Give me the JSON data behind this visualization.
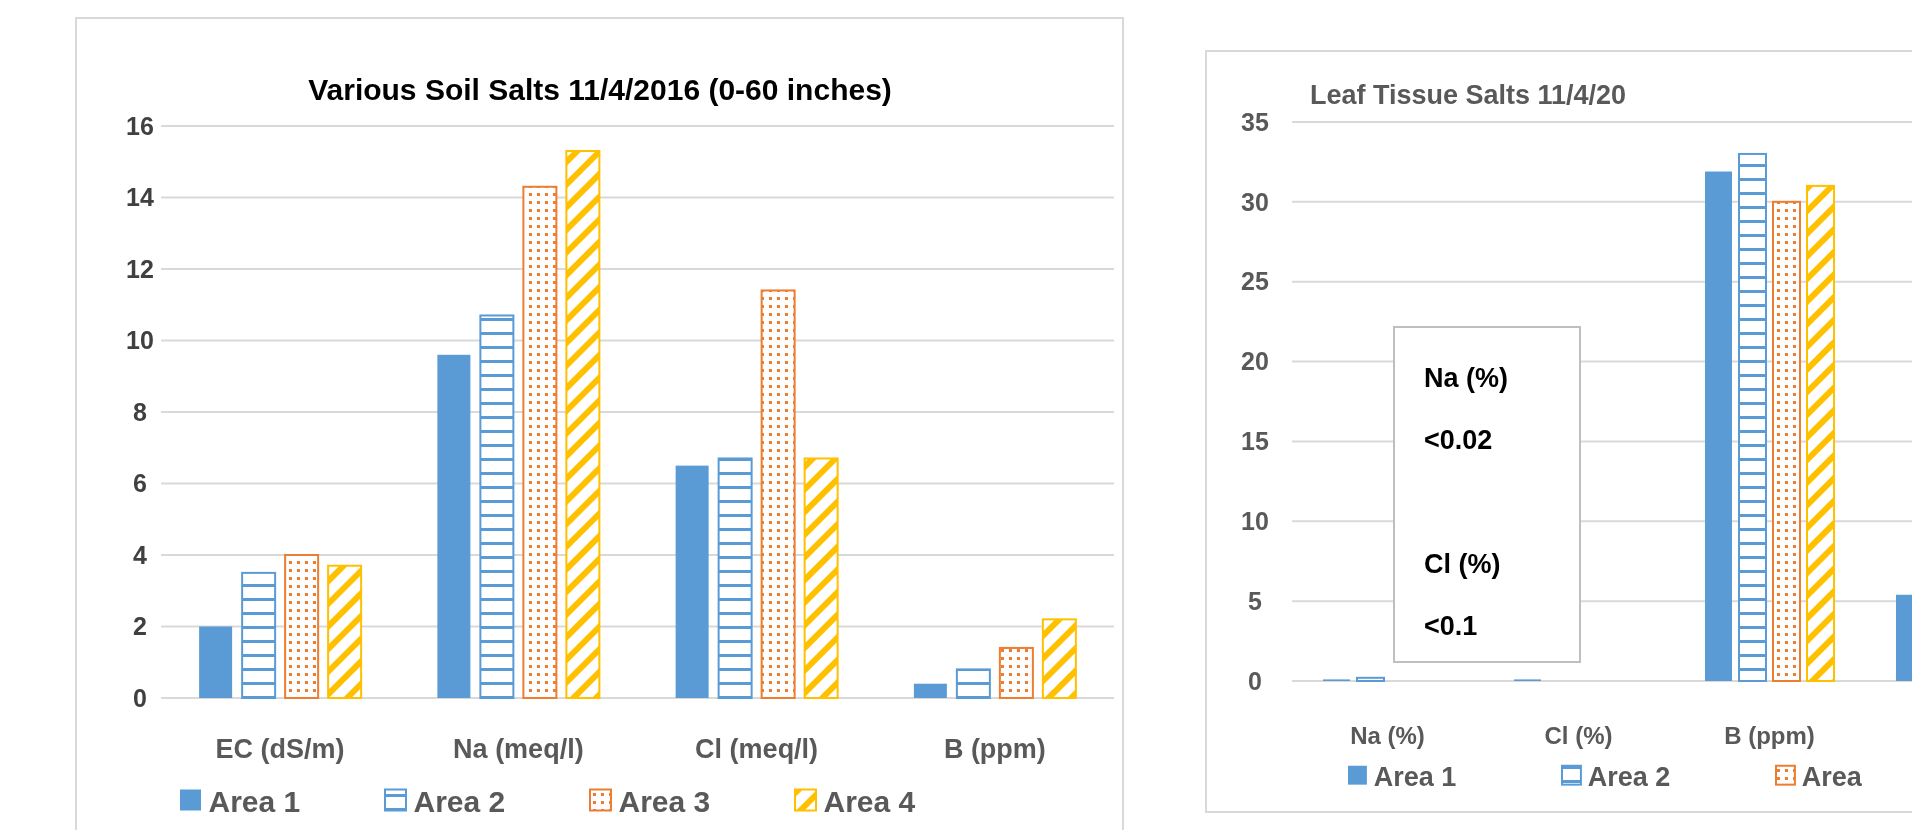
{
  "chart_data": [
    {
      "type": "bar",
      "title": "Various Soil Salts 11/4/2016 (0-60 inches)",
      "categories": [
        "EC (dS/m)",
        "Na (meq/l)",
        "Cl (meq/l)",
        "B (ppm)"
      ],
      "series": [
        {
          "name": "Area 1",
          "color": "#5b9bd5",
          "values": [
            2.0,
            9.6,
            6.5,
            0.4
          ]
        },
        {
          "name": "Area 2",
          "color": "#5b9bd5",
          "values": [
            3.5,
            10.7,
            6.7,
            0.8
          ]
        },
        {
          "name": "Area 3",
          "color": "#ed7d31",
          "values": [
            4.0,
            14.3,
            11.4,
            1.4
          ]
        },
        {
          "name": "Area 4",
          "color": "#ffc000",
          "values": [
            3.7,
            15.3,
            6.7,
            2.2
          ]
        }
      ],
      "ylim": [
        0,
        16
      ],
      "yticks": [
        0,
        2,
        4,
        6,
        8,
        10,
        12,
        14,
        16
      ],
      "grid": "y",
      "legend": "bottom"
    },
    {
      "type": "bar",
      "title": "Leaf Tissue Salts 11/4/20",
      "categories": [
        "Na (%)",
        "Cl (%)",
        "B (ppm)",
        null
      ],
      "series": [
        {
          "name": "Area 1",
          "color": "#5b9bd5",
          "values": [
            0.1,
            0.1,
            31.9,
            5.4
          ]
        },
        {
          "name": "Area 2",
          "color": "#5b9bd5",
          "values": [
            0.2,
            0,
            33.0,
            null
          ]
        },
        {
          "name": "Area",
          "color": "#ed7d31",
          "values": [
            0,
            0,
            30.0,
            null
          ]
        },
        {
          "color": "#ffc000",
          "values": [
            0,
            0,
            31.0,
            null
          ]
        }
      ],
      "ylim": [
        0,
        35
      ],
      "yticks": [
        0,
        5,
        10,
        15,
        20,
        25,
        30,
        35
      ],
      "grid": "y",
      "legend": "bottom",
      "annotations": [
        "Na (%)\n<0.02\n\nCl (%)\n<0.1"
      ]
    }
  ]
}
